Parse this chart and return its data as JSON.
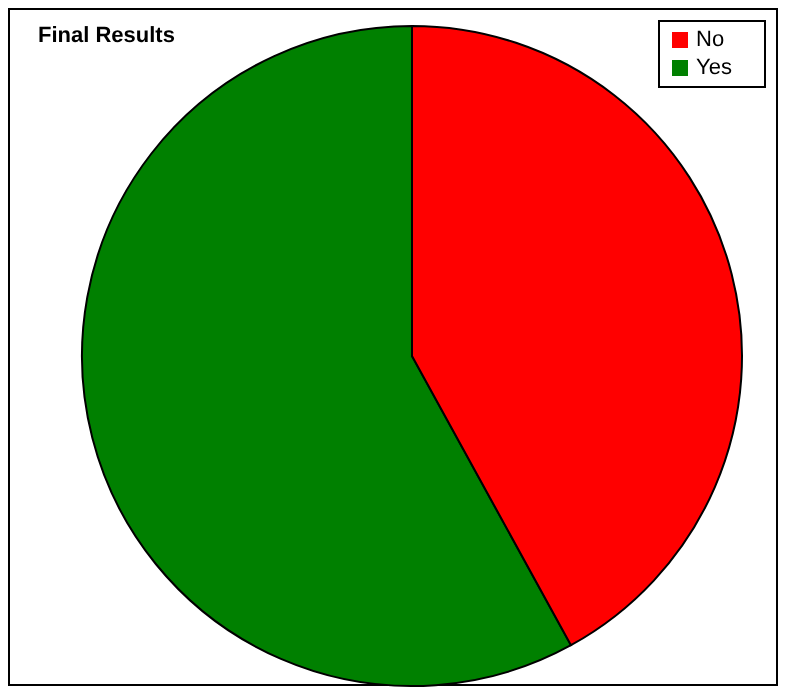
{
  "chart_data": {
    "type": "pie",
    "title": "Final Results",
    "categories": [
      "Yes",
      "No"
    ],
    "values": [
      58,
      42
    ],
    "colors": [
      "#008000",
      "#ff0000"
    ],
    "legend": "top right"
  }
}
